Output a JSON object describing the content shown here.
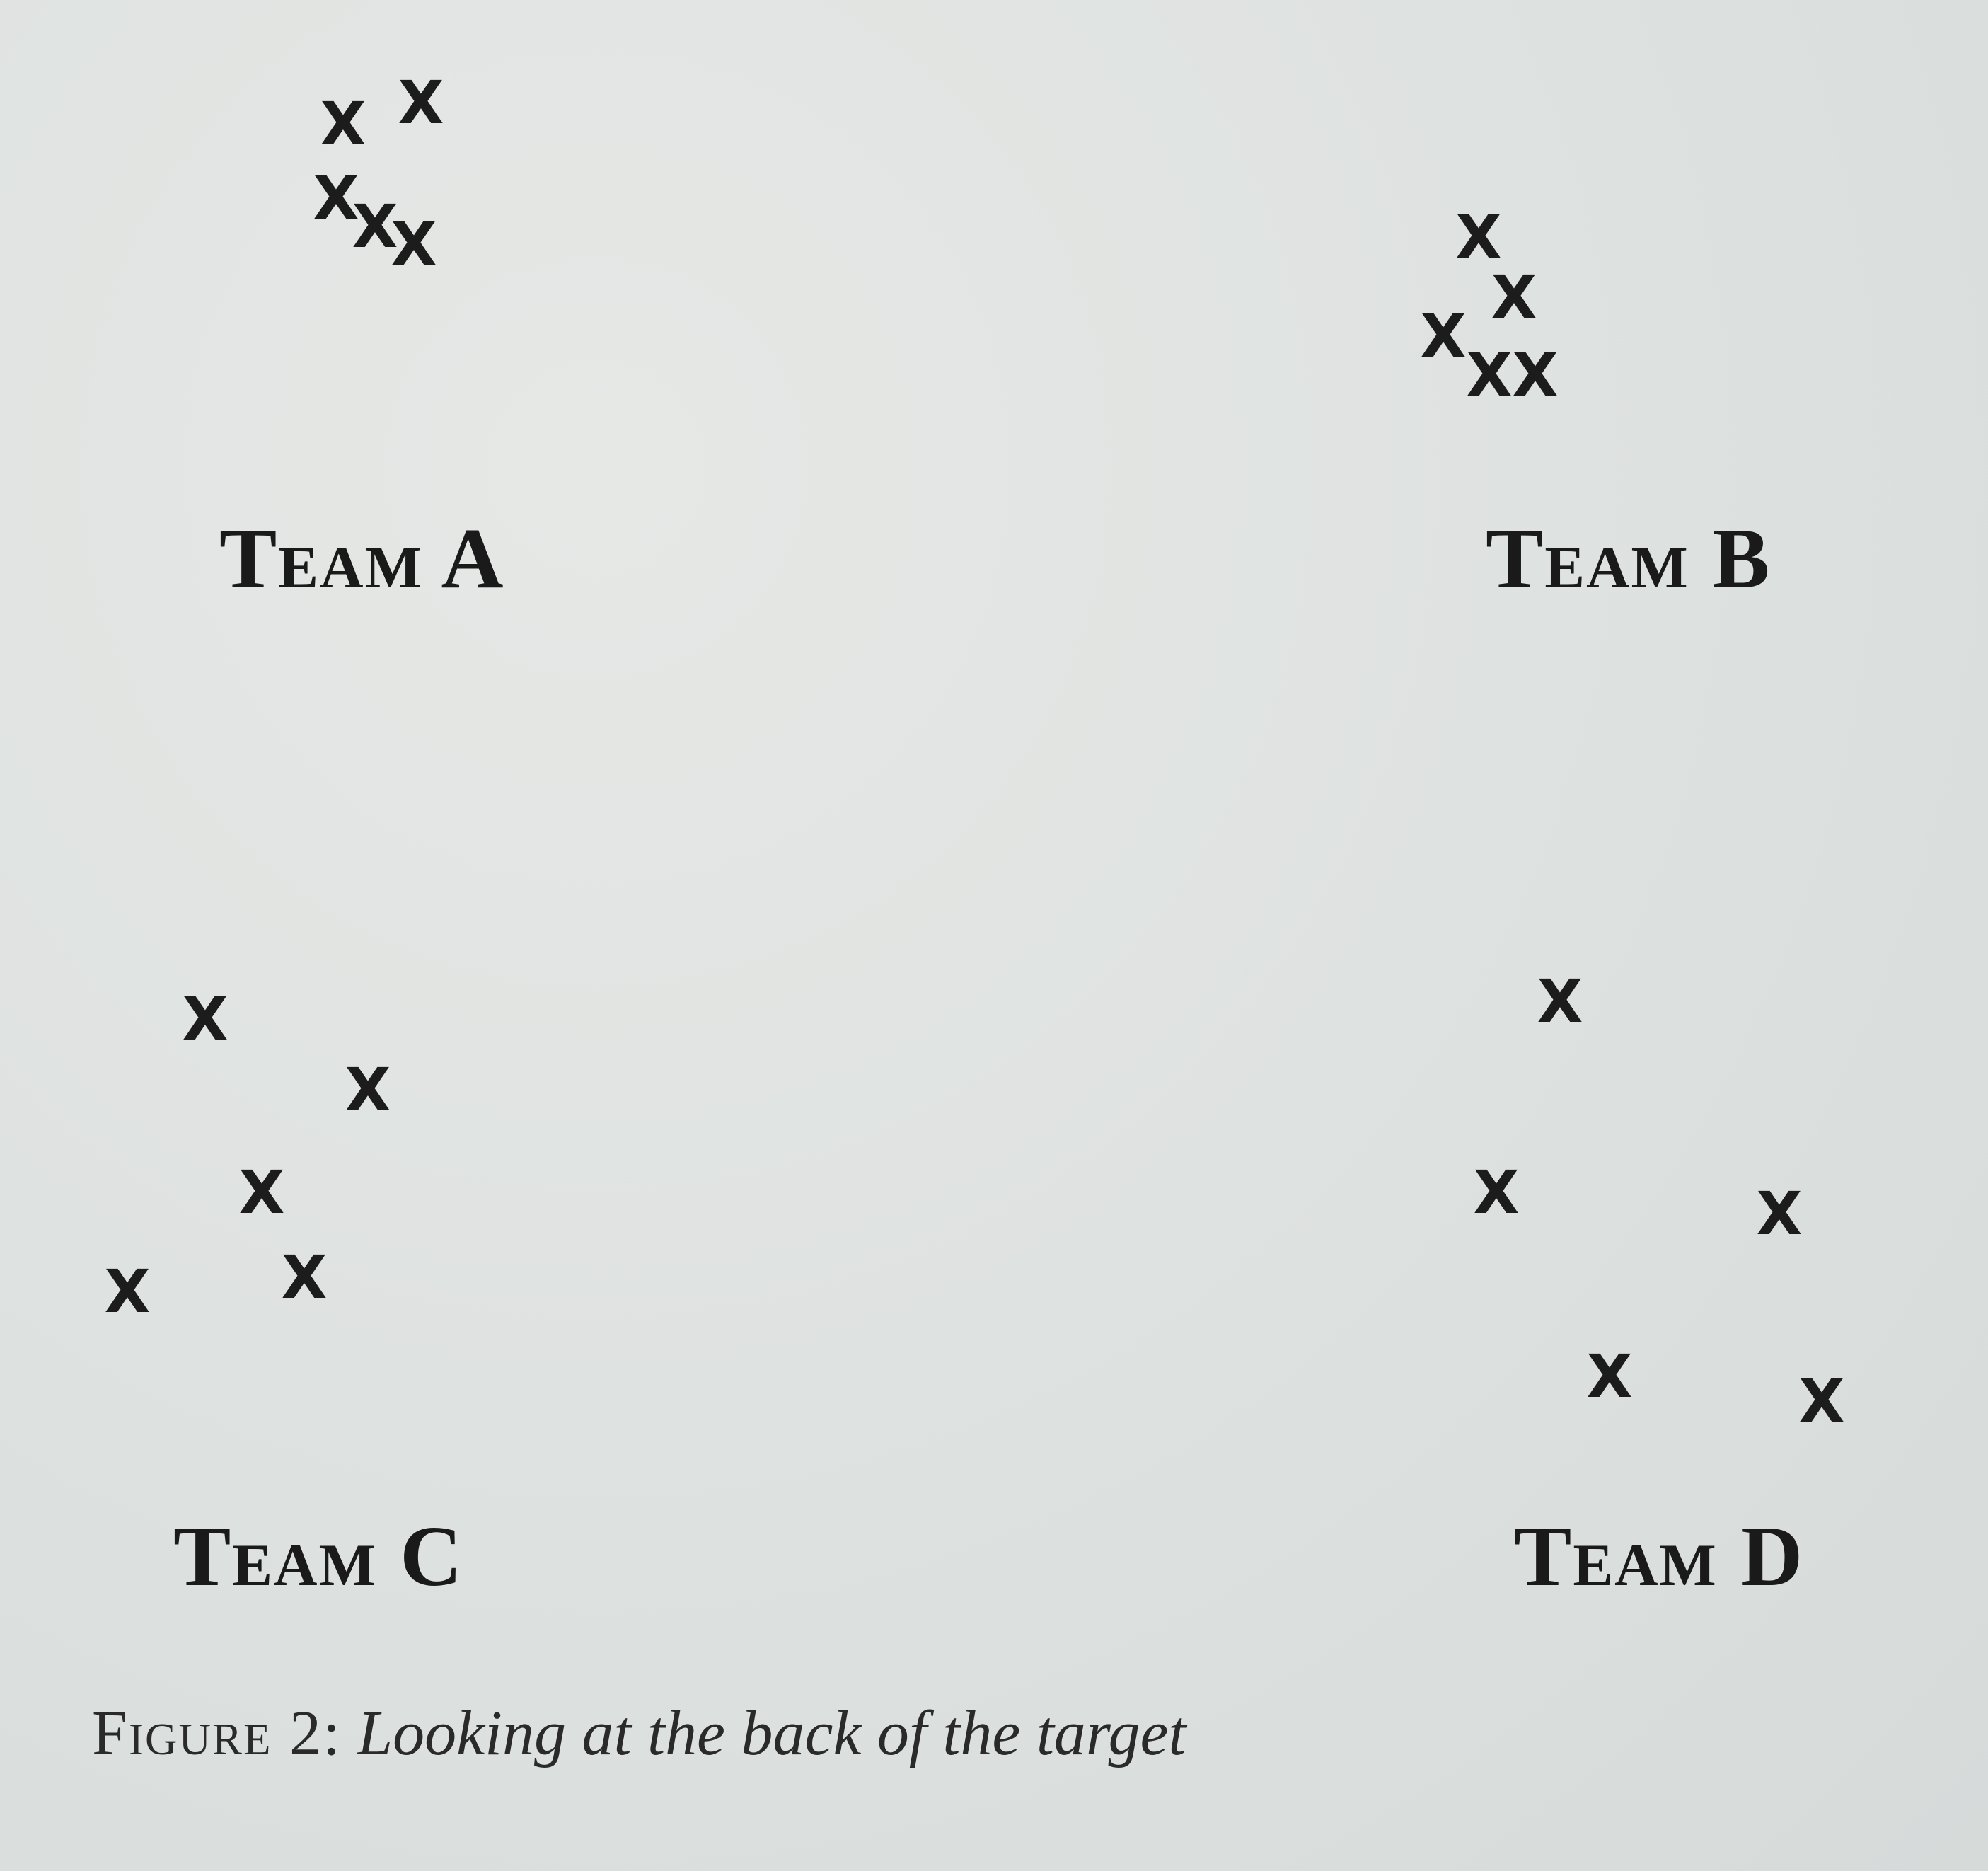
{
  "mark_glyph": "X",
  "teams": {
    "a": {
      "label": "Team A"
    },
    "b": {
      "label": "Team B"
    },
    "c": {
      "label": "Team C"
    },
    "d": {
      "label": "Team D"
    }
  },
  "caption": {
    "label": "Figure 2:",
    "text": "Looking at the back of the target"
  },
  "colors": {
    "paper": "#dfe2e0",
    "ink": "#1c1c1c"
  }
}
